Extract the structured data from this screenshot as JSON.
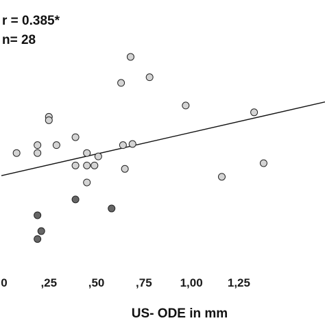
{
  "chart_data": {
    "type": "scatter",
    "title": "",
    "xlabel": "US- ODE in mm",
    "ylabel": "",
    "annotations": [
      "r = 0.385*",
      "n= 28"
    ],
    "x_tick_labels": [
      "0",
      ",25",
      ",50",
      ",75",
      "1,00",
      "1,25"
    ],
    "x_ticks": [
      0,
      0.25,
      0.5,
      0.75,
      1.0,
      1.25
    ],
    "xlim": [
      0,
      1.4
    ],
    "ylim": [
      0,
      10
    ],
    "grid": false,
    "legend": "none",
    "colors": {
      "light_marker": "#d4d4d4",
      "dark_marker": "#666666",
      "marker_edge": "#222222",
      "line": "#111111"
    },
    "series": [
      {
        "group": "light",
        "points": [
          [
            0.08,
            4.6
          ],
          [
            0.19,
            4.6
          ],
          [
            0.19,
            4.95
          ],
          [
            0.25,
            6.2
          ],
          [
            0.25,
            6.05
          ],
          [
            0.29,
            4.95
          ],
          [
            0.39,
            5.3
          ],
          [
            0.39,
            4.05
          ],
          [
            0.45,
            4.05
          ],
          [
            0.45,
            4.6
          ],
          [
            0.45,
            3.3
          ],
          [
            0.49,
            4.05
          ],
          [
            0.51,
            4.45
          ],
          [
            0.63,
            7.7
          ],
          [
            0.64,
            4.95
          ],
          [
            0.65,
            3.9
          ],
          [
            0.68,
            8.85
          ],
          [
            0.69,
            5.0
          ],
          [
            0.78,
            7.95
          ],
          [
            0.97,
            6.7
          ],
          [
            1.16,
            3.55
          ],
          [
            1.33,
            6.4
          ],
          [
            1.38,
            4.15
          ]
        ]
      },
      {
        "group": "dark",
        "points": [
          [
            0.19,
            1.85
          ],
          [
            0.19,
            0.8
          ],
          [
            0.21,
            1.15
          ],
          [
            0.39,
            2.55
          ],
          [
            0.58,
            2.15
          ]
        ]
      }
    ],
    "regression": {
      "x": [
        0,
        1.4
      ],
      "y": [
        3.6,
        6.1
      ]
    }
  }
}
